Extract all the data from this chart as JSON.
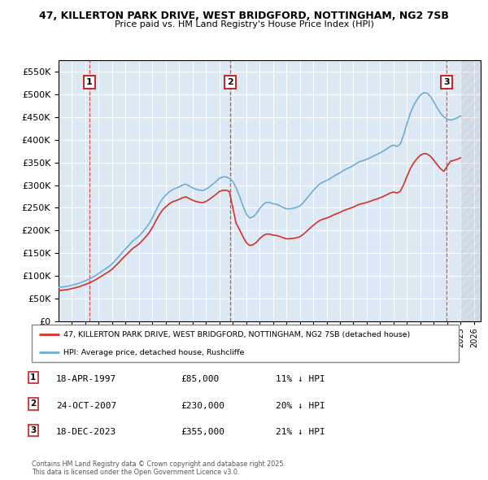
{
  "title_line1": "47, KILLERTON PARK DRIVE, WEST BRIDGFORD, NOTTINGHAM, NG2 7SB",
  "title_line2": "Price paid vs. HM Land Registry's House Price Index (HPI)",
  "ytick_values": [
    0,
    50000,
    100000,
    150000,
    200000,
    250000,
    300000,
    350000,
    400000,
    450000,
    500000,
    550000
  ],
  "ylim": [
    0,
    575000
  ],
  "xlim_start": 1995.0,
  "xlim_end": 2026.5,
  "plot_bg_color": "#dce9f5",
  "grid_color": "#ffffff",
  "hpi_color": "#6baed6",
  "price_color": "#d73027",
  "dashed_line_color": "#d73027",
  "annotations": [
    {
      "num": 1,
      "x_year": 1997.29,
      "price": 85000
    },
    {
      "num": 2,
      "x_year": 2007.81,
      "price": 230000
    },
    {
      "num": 3,
      "x_year": 2023.96,
      "price": 355000
    }
  ],
  "legend_line1": "47, KILLERTON PARK DRIVE, WEST BRIDGFORD, NOTTINGHAM, NG2 7SB (detached house)",
  "legend_line2": "HPI: Average price, detached house, Rushcliffe",
  "table_rows": [
    {
      "num": 1,
      "date": "18-APR-1997",
      "price": "£85,000",
      "pct": "11% ↓ HPI"
    },
    {
      "num": 2,
      "date": "24-OCT-2007",
      "price": "£230,000",
      "pct": "20% ↓ HPI"
    },
    {
      "num": 3,
      "date": "18-DEC-2023",
      "price": "£355,000",
      "pct": "21% ↓ HPI"
    }
  ],
  "footer": "Contains HM Land Registry data © Crown copyright and database right 2025.\nThis data is licensed under the Open Government Licence v3.0.",
  "hpi_data_x": [
    1995.0,
    1995.25,
    1995.5,
    1995.75,
    1996.0,
    1996.25,
    1996.5,
    1996.75,
    1997.0,
    1997.25,
    1997.5,
    1997.75,
    1998.0,
    1998.25,
    1998.5,
    1998.75,
    1999.0,
    1999.25,
    1999.5,
    1999.75,
    2000.0,
    2000.25,
    2000.5,
    2000.75,
    2001.0,
    2001.25,
    2001.5,
    2001.75,
    2002.0,
    2002.25,
    2002.5,
    2002.75,
    2003.0,
    2003.25,
    2003.5,
    2003.75,
    2004.0,
    2004.25,
    2004.5,
    2004.75,
    2005.0,
    2005.25,
    2005.5,
    2005.75,
    2006.0,
    2006.25,
    2006.5,
    2006.75,
    2007.0,
    2007.25,
    2007.5,
    2007.75,
    2008.0,
    2008.25,
    2008.5,
    2008.75,
    2009.0,
    2009.25,
    2009.5,
    2009.75,
    2010.0,
    2010.25,
    2010.5,
    2010.75,
    2011.0,
    2011.25,
    2011.5,
    2011.75,
    2012.0,
    2012.25,
    2012.5,
    2012.75,
    2013.0,
    2013.25,
    2013.5,
    2013.75,
    2014.0,
    2014.25,
    2014.5,
    2014.75,
    2015.0,
    2015.25,
    2015.5,
    2015.75,
    2016.0,
    2016.25,
    2016.5,
    2016.75,
    2017.0,
    2017.25,
    2017.5,
    2017.75,
    2018.0,
    2018.25,
    2018.5,
    2018.75,
    2019.0,
    2019.25,
    2019.5,
    2019.75,
    2020.0,
    2020.25,
    2020.5,
    2020.75,
    2021.0,
    2021.25,
    2021.5,
    2021.75,
    2022.0,
    2022.25,
    2022.5,
    2022.75,
    2023.0,
    2023.25,
    2023.5,
    2023.75,
    2024.0,
    2024.25,
    2024.5,
    2024.75,
    2025.0
  ],
  "hpi_data_y": [
    75000,
    76000,
    77000,
    78000,
    80000,
    82000,
    84000,
    87000,
    90000,
    93000,
    97000,
    101000,
    106000,
    111000,
    116000,
    121000,
    127000,
    135000,
    143000,
    152000,
    160000,
    168000,
    176000,
    182000,
    188000,
    196000,
    205000,
    215000,
    228000,
    243000,
    258000,
    270000,
    278000,
    285000,
    290000,
    293000,
    296000,
    300000,
    302000,
    298000,
    294000,
    291000,
    289000,
    288000,
    291000,
    296000,
    302000,
    308000,
    315000,
    318000,
    318000,
    315000,
    308000,
    294000,
    276000,
    255000,
    237000,
    228000,
    230000,
    237000,
    248000,
    257000,
    262000,
    262000,
    259000,
    258000,
    255000,
    251000,
    248000,
    248000,
    249000,
    251000,
    254000,
    261000,
    270000,
    279000,
    288000,
    296000,
    303000,
    307000,
    310000,
    314000,
    319000,
    323000,
    327000,
    332000,
    336000,
    339000,
    343000,
    348000,
    352000,
    354000,
    357000,
    360000,
    364000,
    367000,
    371000,
    375000,
    380000,
    385000,
    388000,
    385000,
    390000,
    410000,
    435000,
    458000,
    475000,
    488000,
    498000,
    503000,
    502000,
    495000,
    483000,
    470000,
    458000,
    450000,
    445000,
    443000,
    445000,
    448000,
    452000
  ]
}
